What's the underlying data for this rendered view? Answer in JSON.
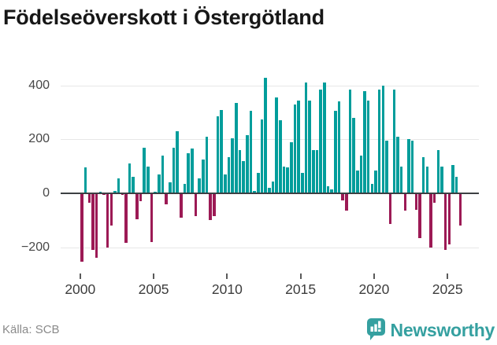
{
  "title": "Födelseöverskott i Östergötland",
  "footer": {
    "source": "Källa: SCB",
    "brand": "Newsworthy"
  },
  "colors": {
    "positive_bar": "#009d9b",
    "negative_bar": "#9c1a55",
    "zero_axis": "#3c4043",
    "gridline": "#e7e7e7",
    "brand_teal": "#35a0a0"
  },
  "chart_data": {
    "type": "bar",
    "title": "Födelseöverskott i Östergötland",
    "xlabel": "",
    "ylabel": "",
    "frequency": "quarterly",
    "start_year": 2000,
    "x_tick_labels": [
      "2000",
      "2005",
      "2010",
      "2015",
      "2020",
      "2025"
    ],
    "y_tick_labels": [
      "400",
      "200",
      "0",
      "−200"
    ],
    "y_ticks": [
      400,
      200,
      0,
      -200
    ],
    "ylim": [
      -295,
      440
    ],
    "grid": true,
    "legend": "none",
    "values": [
      -255,
      95,
      -35,
      -210,
      -240,
      5,
      -5,
      -200,
      -120,
      10,
      55,
      -5,
      -185,
      110,
      60,
      -95,
      -30,
      170,
      100,
      -180,
      5,
      70,
      140,
      -40,
      40,
      170,
      230,
      -90,
      35,
      150,
      165,
      -85,
      55,
      125,
      210,
      -100,
      -85,
      285,
      310,
      70,
      135,
      205,
      335,
      160,
      120,
      215,
      305,
      10,
      75,
      275,
      430,
      20,
      45,
      355,
      270,
      100,
      95,
      190,
      330,
      345,
      75,
      410,
      345,
      160,
      160,
      385,
      410,
      25,
      15,
      305,
      340,
      -25,
      -65,
      385,
      280,
      85,
      140,
      380,
      345,
      35,
      85,
      385,
      400,
      195,
      -115,
      385,
      210,
      100,
      -65,
      200,
      195,
      -60,
      -165,
      135,
      100,
      -200,
      -35,
      160,
      100,
      -210,
      -190,
      105,
      60,
      -120
    ]
  }
}
